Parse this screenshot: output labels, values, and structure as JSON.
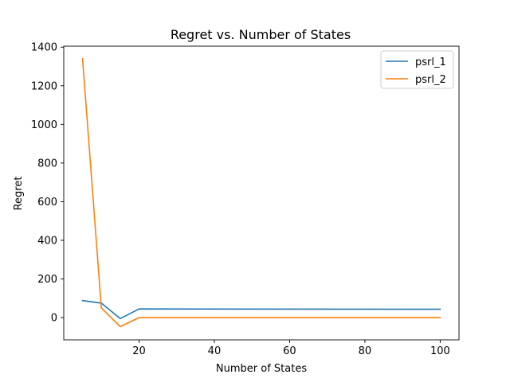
{
  "chart_data": {
    "type": "line",
    "title": "Regret vs. Number of States",
    "xlabel": "Number of States",
    "ylabel": "Regret",
    "xlim": [
      0,
      105
    ],
    "ylim": [
      -115,
      1405
    ],
    "x_ticks": [
      20,
      40,
      60,
      80,
      100
    ],
    "y_ticks": [
      0,
      200,
      400,
      600,
      800,
      1000,
      1200,
      1400
    ],
    "grid": false,
    "legend_position": "top-right",
    "x": [
      5,
      10,
      15,
      20,
      100
    ],
    "series": [
      {
        "name": "psrl_1",
        "color": "#1f77b4",
        "values": [
          88,
          75,
          -5,
          45,
          43
        ]
      },
      {
        "name": "psrl_2",
        "color": "#ff7f0e",
        "values": [
          1340,
          50,
          -47,
          0,
          0
        ]
      }
    ]
  }
}
